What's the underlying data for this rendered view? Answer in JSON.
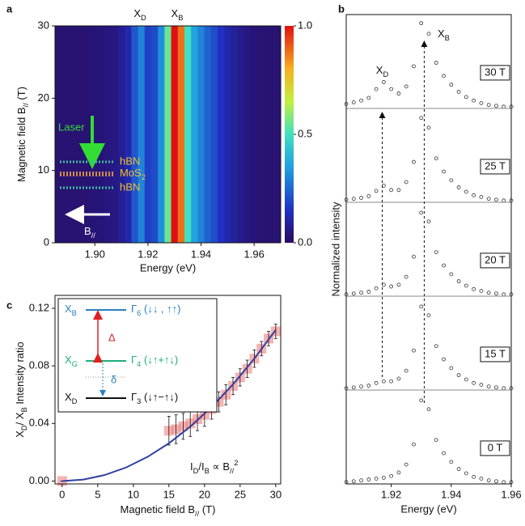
{
  "chart_data": [
    {
      "type": "heatmap",
      "panel": "a",
      "annotations": [
        [
          {
            "n": "X"
          },
          {
            "sub": "D"
          }
        ],
        [
          {
            "n": "X"
          },
          {
            "sub": "B"
          }
        ]
      ],
      "annotation_x": [
        1.917,
        1.931
      ],
      "inset": {
        "laser": "Laser",
        "layers": [
          "hBN",
          [
            {
              "n": "MoS"
            },
            {
              "sub": "2"
            }
          ],
          "hBN"
        ],
        "field": [
          {
            "n": "B"
          },
          {
            "sub": "//"
          }
        ]
      },
      "xlabel": "Energy (eV)",
      "ylabel": [
        {
          "n": "Magnetic field B"
        },
        {
          "sub": "//"
        },
        {
          "n": " (T)"
        }
      ],
      "xlim": [
        1.885,
        1.97
      ],
      "ylim": [
        0,
        30
      ],
      "xticks": [
        {
          "value": 1.9,
          "label": "1.90"
        },
        {
          "value": 1.92,
          "label": "1.92"
        },
        {
          "value": 1.94,
          "label": "1.94"
        },
        {
          "value": 1.96,
          "label": "1.96"
        }
      ],
      "yticks": [
        0,
        10,
        20,
        30
      ],
      "clim": [
        0,
        1
      ],
      "cticks": [
        {
          "value": 0,
          "label": "0.0"
        },
        {
          "value": 0.5,
          "label": "0.5"
        },
        {
          "value": 1,
          "label": "1.0"
        }
      ],
      "x": [
        1.885,
        1.8875,
        1.89,
        1.8925,
        1.895,
        1.8975,
        1.9,
        1.9025,
        1.905,
        1.9075,
        1.91,
        1.9125,
        1.915,
        1.9175,
        1.92,
        1.9225,
        1.925,
        1.9275,
        1.93,
        1.9325,
        1.935,
        1.9375,
        1.94,
        1.9425,
        1.945,
        1.9475,
        1.95,
        1.9525,
        1.955,
        1.9575,
        1.96,
        1.9625,
        1.965,
        1.9675,
        1.97
      ],
      "values": [
        0.03,
        0.03,
        0.03,
        0.03,
        0.03,
        0.03,
        0.04,
        0.04,
        0.05,
        0.06,
        0.08,
        0.12,
        0.22,
        0.3,
        0.18,
        0.2,
        0.32,
        0.55,
        1.0,
        0.88,
        0.5,
        0.36,
        0.3,
        0.24,
        0.2,
        0.15,
        0.12,
        0.09,
        0.07,
        0.05,
        0.04,
        0.03,
        0.03,
        0.03,
        0.03
      ]
    },
    {
      "type": "line",
      "panel": "b",
      "annotations": [
        [
          {
            "n": "X"
          },
          {
            "sub": "D"
          }
        ],
        [
          {
            "n": "X"
          },
          {
            "sub": "B"
          }
        ]
      ],
      "guides": [
        1.917,
        1.931
      ],
      "xlabel": "Energy (eV)",
      "ylabel": "Normalized intensity",
      "xlim": [
        1.905,
        1.96
      ],
      "ylim": [
        0,
        1.05
      ],
      "xticks": [
        1.92,
        1.94,
        1.96
      ],
      "x": [
        1.905,
        1.9075,
        1.91,
        1.9125,
        1.915,
        1.9175,
        1.92,
        1.9225,
        1.925,
        1.9275,
        1.93,
        1.9325,
        1.935,
        1.9375,
        1.94,
        1.9425,
        1.945,
        1.9475,
        1.95,
        1.9525,
        1.955,
        1.9575,
        1.96
      ],
      "series": [
        {
          "name": "30 T",
          "color": "#333333",
          "values": [
            0.05,
            0.07,
            0.09,
            0.12,
            0.22,
            0.3,
            0.22,
            0.17,
            0.25,
            0.48,
            0.97,
            0.85,
            0.52,
            0.37,
            0.27,
            0.19,
            0.13,
            0.09,
            0.06,
            0.04,
            0.03,
            0.02,
            0.02
          ]
        },
        {
          "name": "25 T",
          "color": "#333333",
          "values": [
            0.03,
            0.04,
            0.05,
            0.07,
            0.13,
            0.19,
            0.14,
            0.14,
            0.23,
            0.46,
            0.96,
            0.85,
            0.5,
            0.35,
            0.25,
            0.17,
            0.12,
            0.08,
            0.06,
            0.04,
            0.03,
            0.02,
            0.02
          ]
        },
        {
          "name": "20 T",
          "color": "#333333",
          "values": [
            0.02,
            0.03,
            0.04,
            0.05,
            0.09,
            0.13,
            0.11,
            0.13,
            0.22,
            0.45,
            0.95,
            0.85,
            0.5,
            0.35,
            0.25,
            0.17,
            0.12,
            0.08,
            0.06,
            0.04,
            0.03,
            0.02,
            0.02
          ]
        },
        {
          "name": "15 T",
          "color": "#333333",
          "values": [
            0.02,
            0.03,
            0.04,
            0.05,
            0.08,
            0.1,
            0.1,
            0.13,
            0.22,
            0.45,
            0.95,
            0.85,
            0.5,
            0.35,
            0.25,
            0.17,
            0.12,
            0.08,
            0.06,
            0.04,
            0.03,
            0.02,
            0.02
          ]
        },
        {
          "name": "0 T",
          "color": "#333333",
          "values": [
            0.02,
            0.03,
            0.04,
            0.05,
            0.06,
            0.07,
            0.09,
            0.13,
            0.22,
            0.45,
            0.95,
            0.85,
            0.5,
            0.35,
            0.25,
            0.17,
            0.12,
            0.08,
            0.06,
            0.04,
            0.03,
            0.02,
            0.02
          ]
        }
      ]
    },
    {
      "type": "scatter",
      "panel": "c",
      "xlabel": [
        {
          "n": "Magnetic field B"
        },
        {
          "sub": "//"
        },
        {
          "n": " (T)"
        }
      ],
      "ylabel": [
        {
          "n": "X"
        },
        {
          "sub": "D"
        },
        {
          "n": "/ X"
        },
        {
          "sub": "B"
        },
        {
          "n": " Intensity ratio"
        }
      ],
      "annotation": [
        {
          "n": "I"
        },
        {
          "sub": "D"
        },
        {
          "n": "/I"
        },
        {
          "sub": "B"
        },
        {
          "n": " ∝ B"
        },
        {
          "sub": "//"
        },
        {
          "sup": "2"
        }
      ],
      "inset": {
        "levels": [
          {
            "state": [
              {
                "n": "X"
              },
              {
                "sub": "B"
              }
            ],
            "label": [
              {
                "n": "Γ"
              },
              {
                "sub": "6"
              },
              {
                "n": " (↓↓ , ↑↑)"
              }
            ],
            "color": "#2a7fc0"
          },
          {
            "state": [
              {
                "n": "X"
              },
              {
                "sub": "G"
              }
            ],
            "label": [
              {
                "n": "Γ"
              },
              {
                "sub": "4"
              },
              {
                "n": " (↓↑+↑↓)"
              }
            ],
            "color": "#1fae7a"
          },
          {
            "state": [
              {
                "n": "X"
              },
              {
                "sub": "D"
              }
            ],
            "label": [
              {
                "n": "Γ"
              },
              {
                "sub": "3"
              },
              {
                "n": " (↓↑−↑↓)"
              }
            ],
            "color": "#111111"
          }
        ],
        "gaps": [
          "Δ",
          "δ"
        ]
      },
      "xlim": [
        -1,
        30.7
      ],
      "ylim": [
        -0.002,
        0.129
      ],
      "xticks": [
        0,
        5,
        10,
        15,
        20,
        25,
        30
      ],
      "yticks": [
        {
          "value": 0,
          "label": "0.00"
        },
        {
          "value": 0.04,
          "label": "0.04"
        },
        {
          "value": 0.08,
          "label": "0.08"
        },
        {
          "value": 0.12,
          "label": "0.12"
        }
      ],
      "color": "#f08080",
      "x": [
        0,
        15,
        16,
        17,
        18,
        19,
        20,
        21,
        22,
        23,
        24,
        25,
        26,
        27,
        28,
        29,
        30
      ],
      "values": [
        0.0,
        0.035,
        0.036,
        0.038,
        0.04,
        0.043,
        0.046,
        0.05,
        0.055,
        0.06,
        0.066,
        0.072,
        0.078,
        0.085,
        0.092,
        0.099,
        0.104
      ],
      "errors": [
        0.0,
        0.01,
        0.01,
        0.009,
        0.009,
        0.008,
        0.008,
        0.007,
        0.007,
        0.007,
        0.006,
        0.006,
        0.006,
        0.006,
        0.005,
        0.005,
        0.005
      ],
      "fit": {
        "color": "#3040a0",
        "x": [
          0,
          3,
          6,
          9,
          12,
          15,
          18,
          21,
          24,
          27,
          30
        ],
        "values": [
          0,
          0.00105,
          0.0042,
          0.00945,
          0.0168,
          0.02625,
          0.0378,
          0.05145,
          0.0672,
          0.08505,
          0.105
        ]
      }
    }
  ],
  "panel_labels": [
    "a",
    "b",
    "c"
  ]
}
